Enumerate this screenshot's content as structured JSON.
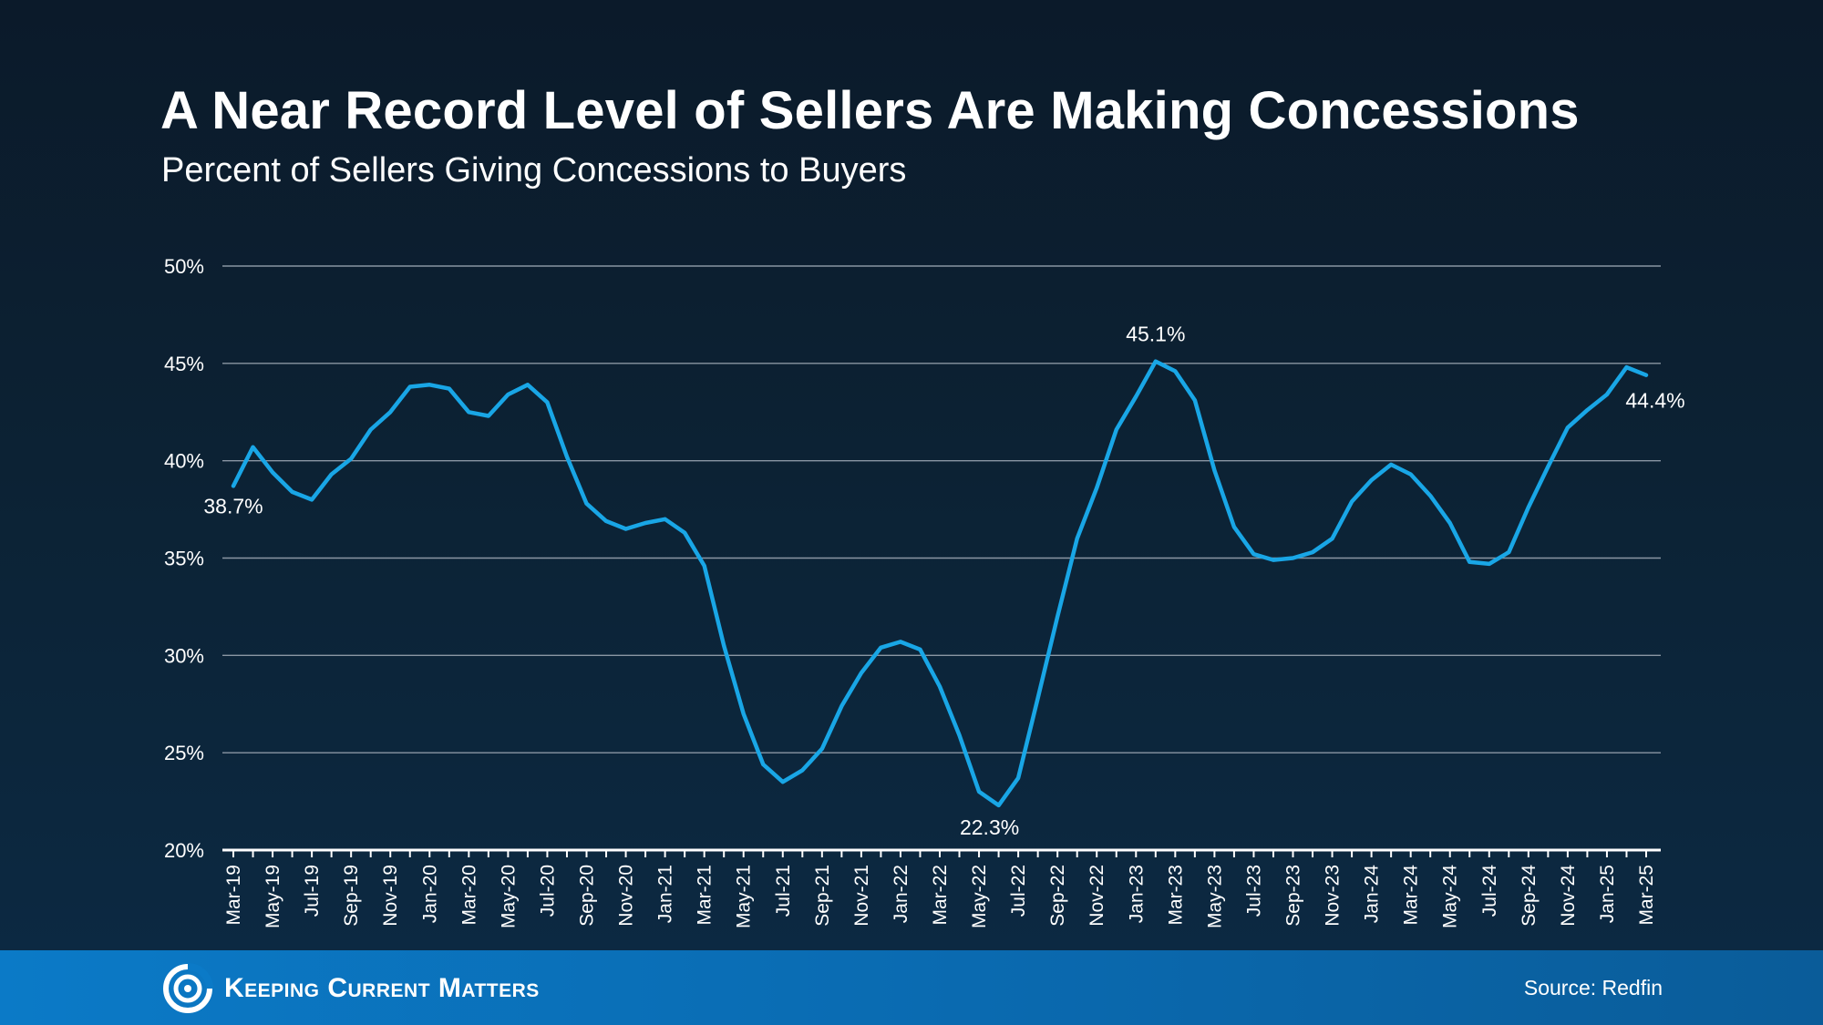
{
  "header": {
    "title": "A Near Record Level of Sellers Are Making Concessions",
    "subtitle": "Percent of Sellers Giving Concessions to Buyers"
  },
  "footer": {
    "brand": "Keeping Current Matters",
    "source": "Source: Redfin"
  },
  "colors": {
    "line": "#19a6e6",
    "grid": "#8a96a3",
    "axis": "#ffffff"
  },
  "chart_data": {
    "type": "line",
    "title": "A Near Record Level of Sellers Are Making Concessions",
    "subtitle": "Percent of Sellers Giving Concessions to Buyers",
    "xlabel": "",
    "ylabel": "",
    "ylim": [
      20,
      50
    ],
    "yticks": [
      20,
      25,
      30,
      35,
      40,
      45,
      50
    ],
    "ytick_labels": [
      "20%",
      "25%",
      "30%",
      "35%",
      "40%",
      "45%",
      "50%"
    ],
    "grid": true,
    "legend": "none",
    "x": [
      "Mar-19",
      "Apr-19",
      "May-19",
      "Jun-19",
      "Jul-19",
      "Aug-19",
      "Sep-19",
      "Oct-19",
      "Nov-19",
      "Dec-19",
      "Jan-20",
      "Feb-20",
      "Mar-20",
      "Apr-20",
      "May-20",
      "Jun-20",
      "Jul-20",
      "Aug-20",
      "Sep-20",
      "Oct-20",
      "Nov-20",
      "Dec-20",
      "Jan-21",
      "Feb-21",
      "Mar-21",
      "Apr-21",
      "May-21",
      "Jun-21",
      "Jul-21",
      "Aug-21",
      "Sep-21",
      "Oct-21",
      "Nov-21",
      "Dec-21",
      "Jan-22",
      "Feb-22",
      "Mar-22",
      "Apr-22",
      "May-22",
      "Jun-22",
      "Jul-22",
      "Aug-22",
      "Sep-22",
      "Oct-22",
      "Nov-22",
      "Dec-22",
      "Jan-23",
      "Feb-23",
      "Mar-23",
      "Apr-23",
      "May-23",
      "Jun-23",
      "Jul-23",
      "Aug-23",
      "Sep-23",
      "Oct-23",
      "Nov-23",
      "Dec-23",
      "Jan-24",
      "Feb-24",
      "Mar-24",
      "Apr-24",
      "May-24",
      "Jun-24",
      "Jul-24",
      "Aug-24",
      "Sep-24",
      "Oct-24",
      "Nov-24",
      "Dec-24",
      "Jan-25",
      "Feb-25",
      "Mar-25"
    ],
    "xtick_labels": [
      "Mar-19",
      "May-19",
      "Jul-19",
      "Sep-19",
      "Nov-19",
      "Jan-20",
      "Mar-20",
      "May-20",
      "Jul-20",
      "Sep-20",
      "Nov-20",
      "Jan-21",
      "Mar-21",
      "May-21",
      "Jul-21",
      "Sep-21",
      "Nov-21",
      "Jan-22",
      "Mar-22",
      "May-22",
      "Jul-22",
      "Sep-22",
      "Nov-22",
      "Jan-23",
      "Mar-23",
      "May-23",
      "Jul-23",
      "Sep-23",
      "Nov-23",
      "Jan-24",
      "Mar-24",
      "May-24",
      "Jul-24",
      "Sep-24",
      "Nov-24",
      "Jan-25",
      "Mar-25"
    ],
    "series": [
      {
        "name": "Percent of Sellers Giving Concessions to Buyers",
        "values": [
          38.7,
          40.7,
          39.4,
          38.4,
          38.0,
          39.3,
          40.1,
          41.6,
          42.5,
          43.8,
          43.9,
          43.7,
          42.5,
          42.3,
          43.4,
          43.9,
          43.0,
          40.2,
          37.8,
          36.9,
          36.5,
          36.8,
          37.0,
          36.3,
          34.6,
          30.5,
          27.0,
          24.4,
          23.5,
          24.1,
          25.2,
          27.4,
          29.1,
          30.4,
          30.7,
          30.3,
          28.4,
          25.9,
          23.0,
          22.3,
          23.7,
          27.8,
          32.0,
          36.0,
          38.6,
          41.6,
          43.3,
          45.1,
          44.6,
          43.1,
          39.5,
          36.6,
          35.2,
          34.9,
          35.0,
          35.3,
          36.0,
          37.9,
          39.0,
          39.8,
          39.3,
          38.2,
          36.8,
          34.8,
          34.7,
          35.3,
          37.6,
          39.7,
          41.7,
          42.6,
          43.4,
          44.8,
          44.4
        ]
      }
    ],
    "annotations": [
      {
        "text": "38.7%",
        "x": "Mar-19",
        "value": 38.7
      },
      {
        "text": "22.3%",
        "x": "Jun-22",
        "value": 22.3
      },
      {
        "text": "45.1%",
        "x": "Feb-23",
        "value": 45.1
      },
      {
        "text": "44.4%",
        "x": "Mar-25",
        "value": 44.4
      }
    ]
  }
}
